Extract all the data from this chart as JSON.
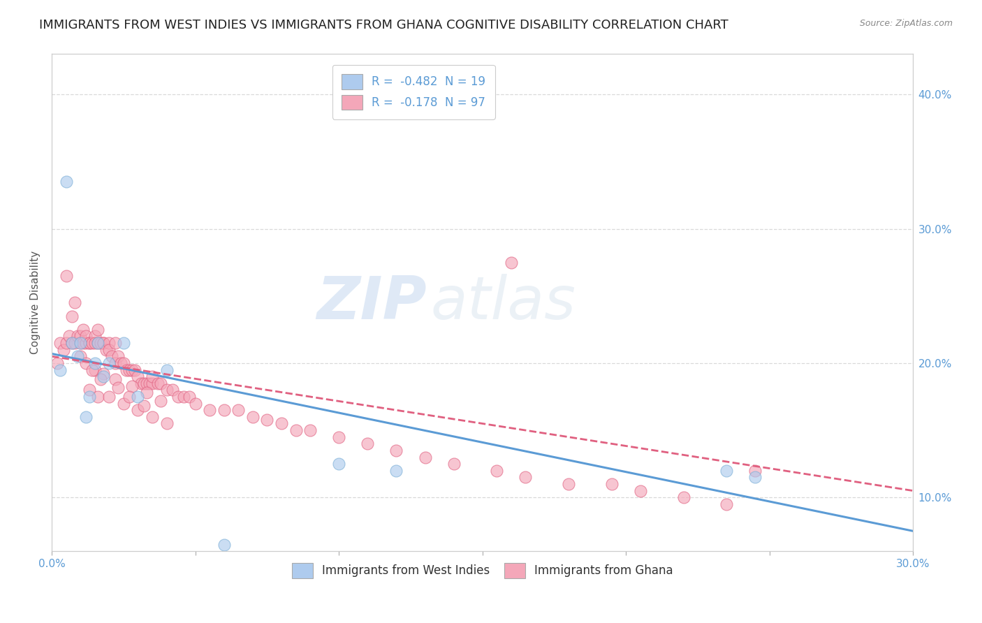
{
  "title": "IMMIGRANTS FROM WEST INDIES VS IMMIGRANTS FROM GHANA COGNITIVE DISABILITY CORRELATION CHART",
  "source": "Source: ZipAtlas.com",
  "ylabel": "Cognitive Disability",
  "xlim": [
    0.0,
    0.3
  ],
  "ylim": [
    0.06,
    0.43
  ],
  "xticks": [
    0.0,
    0.05,
    0.1,
    0.15,
    0.2,
    0.25,
    0.3
  ],
  "yticks": [
    0.1,
    0.2,
    0.3,
    0.4
  ],
  "ytick_labels": [
    "10.0%",
    "20.0%",
    "30.0%",
    "40.0%"
  ],
  "xtick_labels_show": [
    "0.0%",
    "",
    "",
    "",
    "",
    "",
    "30.0%"
  ],
  "series": [
    {
      "label": "Immigrants from West Indies",
      "color": "#aecbee",
      "edge_color": "#7aaed6",
      "R": -0.482,
      "N": 19,
      "line_color": "#5b9bd5",
      "line_style": "-",
      "x": [
        0.003,
        0.005,
        0.007,
        0.009,
        0.01,
        0.012,
        0.013,
        0.015,
        0.016,
        0.018,
        0.02,
        0.025,
        0.03,
        0.04,
        0.06,
        0.1,
        0.12,
        0.235,
        0.245
      ],
      "y": [
        0.195,
        0.335,
        0.215,
        0.205,
        0.215,
        0.16,
        0.175,
        0.2,
        0.215,
        0.19,
        0.2,
        0.215,
        0.175,
        0.195,
        0.065,
        0.125,
        0.12,
        0.12,
        0.115
      ]
    },
    {
      "label": "Immigrants from Ghana",
      "color": "#f4a7b9",
      "edge_color": "#e06080",
      "R": -0.178,
      "N": 97,
      "line_color": "#e06080",
      "line_style": "--",
      "x": [
        0.002,
        0.003,
        0.004,
        0.005,
        0.005,
        0.006,
        0.007,
        0.007,
        0.008,
        0.008,
        0.009,
        0.01,
        0.01,
        0.011,
        0.011,
        0.012,
        0.012,
        0.013,
        0.013,
        0.014,
        0.015,
        0.015,
        0.016,
        0.016,
        0.017,
        0.018,
        0.018,
        0.019,
        0.02,
        0.02,
        0.021,
        0.022,
        0.022,
        0.023,
        0.024,
        0.025,
        0.026,
        0.027,
        0.028,
        0.029,
        0.03,
        0.031,
        0.032,
        0.033,
        0.034,
        0.035,
        0.035,
        0.037,
        0.038,
        0.04,
        0.042,
        0.044,
        0.046,
        0.048,
        0.05,
        0.055,
        0.06,
        0.065,
        0.07,
        0.075,
        0.08,
        0.085,
        0.09,
        0.1,
        0.11,
        0.12,
        0.13,
        0.14,
        0.155,
        0.165,
        0.18,
        0.195,
        0.205,
        0.22,
        0.235,
        0.245,
        0.013,
        0.016,
        0.02,
        0.025,
        0.03,
        0.035,
        0.04,
        0.015,
        0.018,
        0.022,
        0.028,
        0.033,
        0.038,
        0.01,
        0.012,
        0.014,
        0.017,
        0.023,
        0.027,
        0.032,
        0.16
      ],
      "y": [
        0.2,
        0.215,
        0.21,
        0.265,
        0.215,
        0.22,
        0.235,
        0.215,
        0.245,
        0.215,
        0.22,
        0.22,
        0.215,
        0.225,
        0.215,
        0.215,
        0.22,
        0.215,
        0.215,
        0.215,
        0.22,
        0.215,
        0.215,
        0.225,
        0.215,
        0.215,
        0.215,
        0.21,
        0.215,
        0.21,
        0.205,
        0.2,
        0.215,
        0.205,
        0.2,
        0.2,
        0.195,
        0.195,
        0.195,
        0.195,
        0.19,
        0.185,
        0.185,
        0.185,
        0.185,
        0.185,
        0.19,
        0.185,
        0.185,
        0.18,
        0.18,
        0.175,
        0.175,
        0.175,
        0.17,
        0.165,
        0.165,
        0.165,
        0.16,
        0.158,
        0.155,
        0.15,
        0.15,
        0.145,
        0.14,
        0.135,
        0.13,
        0.125,
        0.12,
        0.115,
        0.11,
        0.11,
        0.105,
        0.1,
        0.095,
        0.12,
        0.18,
        0.175,
        0.175,
        0.17,
        0.165,
        0.16,
        0.155,
        0.195,
        0.192,
        0.188,
        0.183,
        0.178,
        0.172,
        0.205,
        0.2,
        0.195,
        0.188,
        0.182,
        0.175,
        0.168,
        0.275
      ]
    }
  ],
  "legend_R_color": "#5b9bd5",
  "watermark_zip": "ZIP",
  "watermark_atlas": "atlas",
  "background_color": "#ffffff",
  "grid_color": "#d0d0d0",
  "title_fontsize": 13,
  "axis_label_fontsize": 11,
  "tick_fontsize": 11,
  "legend_fontsize": 12
}
